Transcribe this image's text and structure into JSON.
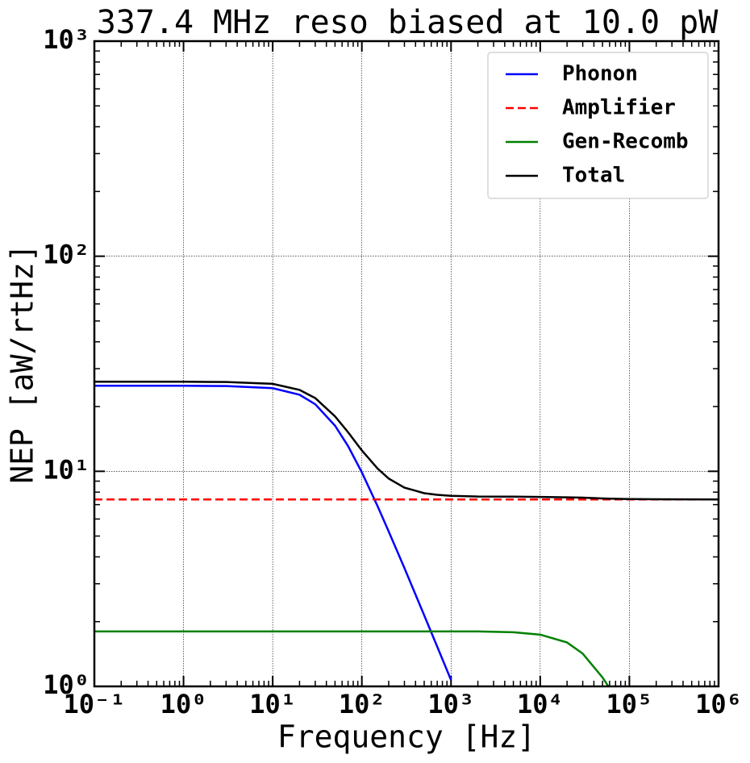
{
  "chart_data": {
    "type": "line",
    "title": "337.4 MHz reso biased at 10.0 pW",
    "x_label": "Frequency [Hz]",
    "y_label": "NEP [aW/rtHz]",
    "x": [
      0.1,
      0.3,
      1,
      3,
      10,
      20,
      30,
      50,
      70,
      100,
      150,
      200,
      300,
      500,
      700,
      1000,
      2000,
      5000,
      10000,
      20000,
      30000,
      50000,
      60000,
      100000,
      200000,
      1000000
    ],
    "series": [
      {
        "name": "Phonon",
        "color": "#0000ff",
        "dash": "solid",
        "values": [
          25,
          25,
          25,
          24.9,
          24.35,
          22.7,
          20.5,
          16.3,
          13.1,
          9.88,
          6.89,
          5.25,
          3.55,
          2.14,
          1.53,
          1.07,
          null,
          null,
          null,
          null,
          null,
          null,
          null,
          null,
          null,
          null
        ]
      },
      {
        "name": "Amplifier",
        "color": "#ff0000",
        "dash": "dashed",
        "values": [
          7.4,
          7.4,
          7.4,
          7.4,
          7.4,
          7.4,
          7.4,
          7.4,
          7.4,
          7.4,
          7.4,
          7.4,
          7.4,
          7.4,
          7.4,
          7.4,
          7.4,
          7.4,
          7.4,
          7.4,
          7.4,
          7.4,
          7.4,
          7.4,
          7.4,
          7.4
        ]
      },
      {
        "name": "Gen-Recomb",
        "color": "#008000",
        "dash": "solid",
        "values": [
          1.8,
          1.8,
          1.8,
          1.8,
          1.8,
          1.8,
          1.8,
          1.8,
          1.8,
          1.8,
          1.8,
          1.8,
          1.8,
          1.8,
          1.8,
          1.8,
          1.8,
          1.785,
          1.74,
          1.6,
          1.42,
          1.1,
          0.98,
          null,
          null,
          null
        ]
      },
      {
        "name": "Total",
        "color": "#000000",
        "dash": "solid",
        "values": [
          26.1,
          26.1,
          26.1,
          26.0,
          25.5,
          23.9,
          21.9,
          18.0,
          15.2,
          12.5,
          10.3,
          9.25,
          8.4,
          7.91,
          7.77,
          7.69,
          7.63,
          7.62,
          7.6,
          7.57,
          7.54,
          7.48,
          7.46,
          7.43,
          7.41,
          7.4
        ]
      }
    ],
    "xscale": "log",
    "yscale": "log",
    "xlim": [
      0.1,
      1000000
    ],
    "ylim": [
      1,
      1000
    ],
    "xticks": [
      {
        "value": 0.1,
        "label": "10⁻¹"
      },
      {
        "value": 1,
        "label": "10⁰"
      },
      {
        "value": 10,
        "label": "10¹"
      },
      {
        "value": 100,
        "label": "10²"
      },
      {
        "value": 1000,
        "label": "10³"
      },
      {
        "value": 10000,
        "label": "10⁴"
      },
      {
        "value": 100000,
        "label": "10⁵"
      },
      {
        "value": 1000000,
        "label": "10⁶"
      }
    ],
    "yticks": [
      {
        "value": 1,
        "label": "10⁰"
      },
      {
        "value": 10,
        "label": "10¹"
      },
      {
        "value": 100,
        "label": "10²"
      },
      {
        "value": 1000,
        "label": "10³"
      }
    ],
    "grid": true,
    "legend": "upper right"
  }
}
